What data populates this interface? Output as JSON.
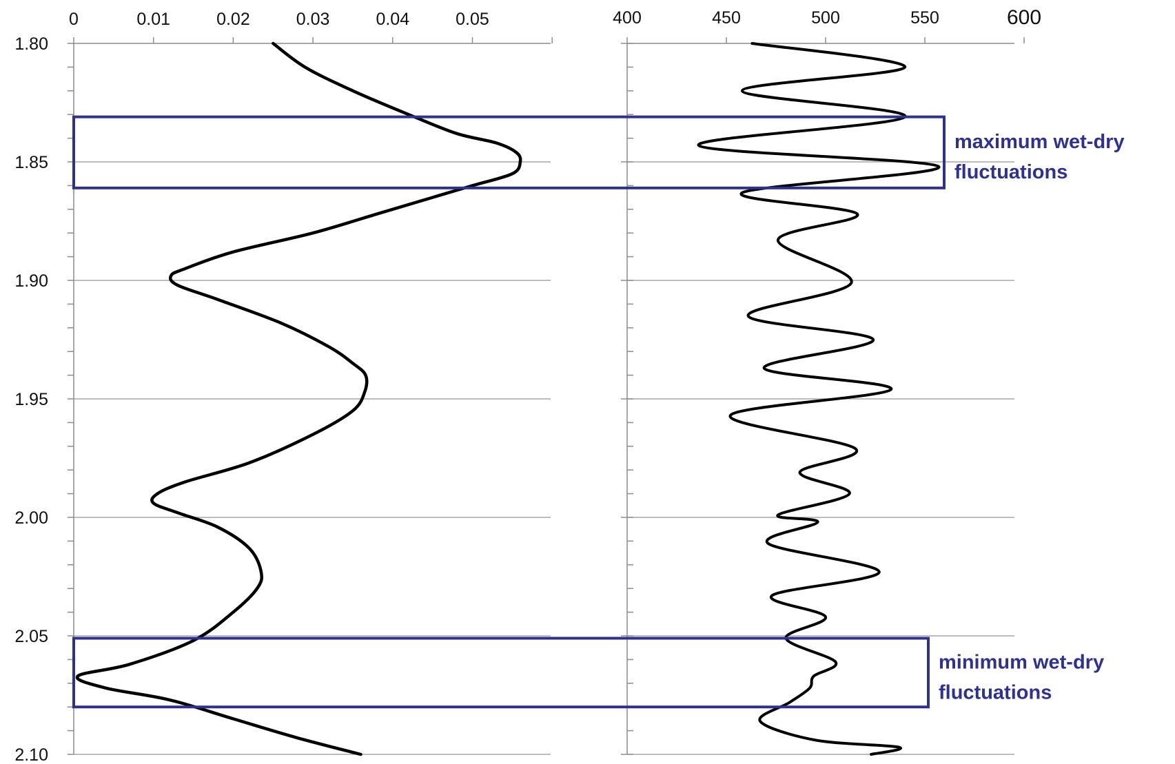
{
  "chart_data": [
    {
      "type": "line",
      "orientation": "vertical-depth",
      "y_ticks": [
        "1.80",
        "1.85",
        "1.90",
        "1.95",
        "2.00",
        "2.05",
        "2.10"
      ],
      "y_tick_values": [
        1.8,
        1.85,
        1.9,
        1.95,
        2.0,
        2.05,
        2.1
      ],
      "ylim": [
        1.8,
        2.1
      ],
      "y_inverted": true,
      "x_ticks": [
        "0",
        "0.01",
        "0.02",
        "0.03",
        "0.04",
        "0.05"
      ],
      "x_tick_values": [
        0,
        0.01,
        0.02,
        0.03,
        0.04,
        0.05
      ],
      "xlim": [
        0,
        0.06
      ],
      "grid": "horizontal",
      "series": [
        {
          "x": [
            0.025,
            0.029,
            0.035,
            0.042,
            0.048,
            0.053,
            0.0555,
            0.056,
            0.055,
            0.05,
            0.045,
            0.038,
            0.03,
            0.02,
            0.014,
            0.0122,
            0.013,
            0.018,
            0.026,
            0.032,
            0.035,
            0.0366,
            0.0365,
            0.035,
            0.03,
            0.022,
            0.014,
            0.0105,
            0.01,
            0.013,
            0.018,
            0.022,
            0.0235,
            0.023,
            0.02,
            0.015,
            0.007,
            0.0005,
            0.004,
            0.012,
            0.02,
            0.028,
            0.036
          ],
          "y": [
            1.8,
            1.81,
            1.82,
            1.83,
            1.838,
            1.842,
            1.846,
            1.85,
            1.855,
            1.86,
            1.865,
            1.872,
            1.88,
            1.888,
            1.895,
            1.898,
            1.902,
            1.908,
            1.918,
            1.928,
            1.935,
            1.94,
            1.947,
            1.955,
            1.965,
            1.977,
            1.985,
            1.99,
            1.994,
            1.998,
            2.004,
            2.013,
            2.023,
            2.03,
            2.04,
            2.052,
            2.062,
            2.067,
            2.072,
            2.077,
            2.085,
            2.093,
            2.1
          ]
        }
      ]
    },
    {
      "type": "line",
      "orientation": "vertical-depth",
      "y_ticks": [
        "1.80",
        "1.85",
        "1.90",
        "1.95",
        "2.00",
        "2.05",
        "2.10"
      ],
      "y_tick_values": [
        1.8,
        1.85,
        1.9,
        1.95,
        2.0,
        2.05,
        2.1
      ],
      "ylim": [
        1.8,
        2.1
      ],
      "y_inverted": true,
      "x_ticks": [
        "400",
        "450",
        "500",
        "550",
        "600"
      ],
      "x_tick_values": [
        400,
        450,
        500,
        550,
        600
      ],
      "xlim": [
        400,
        600
      ],
      "grid": "horizontal",
      "series": [
        {
          "x": [
            463,
            540,
            458,
            540,
            436,
            557,
            458,
            516,
            476,
            513,
            461,
            524,
            469,
            533,
            452,
            515,
            487,
            512,
            476,
            496,
            471,
            527,
            473,
            500,
            480,
            505,
            494,
            492,
            482,
            467,
            495,
            537,
            523
          ],
          "y": [
            1.8,
            1.81,
            1.82,
            1.831,
            1.843,
            1.852,
            1.863,
            1.872,
            1.883,
            1.901,
            1.915,
            1.925,
            1.937,
            1.946,
            1.957,
            1.971,
            1.981,
            1.99,
            1.999,
            2.002,
            2.011,
            2.023,
            2.033,
            2.042,
            2.051,
            2.061,
            2.067,
            2.072,
            2.078,
            2.086,
            2.094,
            2.097,
            2.1
          ]
        }
      ]
    }
  ],
  "annotations": [
    {
      "label_line1": "maximum wet-dry",
      "label_line2": "fluctuations",
      "y_range": [
        1.831,
        1.861
      ]
    },
    {
      "label_line1": "minimum wet-dry",
      "label_line2": "fluctuations",
      "y_range": [
        2.051,
        2.08
      ]
    }
  ],
  "colors": {
    "line": "#000000",
    "grid": "#a6a6a6",
    "axis": "#8c8c8c",
    "annotation": "#2e3192",
    "text": "#111111"
  }
}
